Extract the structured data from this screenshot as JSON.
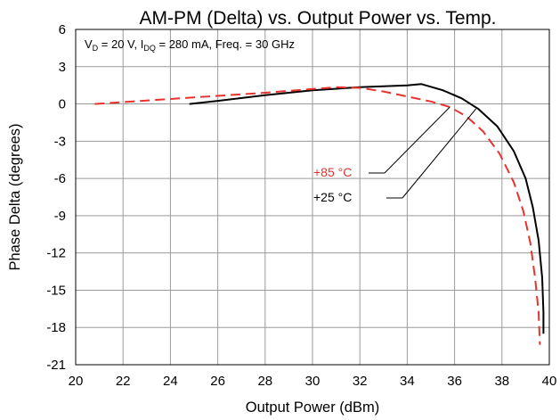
{
  "chart_data": {
    "type": "line",
    "title": "AM-PM (Delta) vs. Output Power vs. Temp.",
    "conditions": {
      "vd_sym": "V",
      "vd_sub": "D",
      "vd_val": " = 20 V, ",
      "idq_sym": "I",
      "idq_sub": "DQ",
      "idq_val": " = 280 mA, Freq. = 30 GHz"
    },
    "xlabel": "Output Power (dBm)",
    "ylabel": "Phase Delta (degrees)",
    "xlim": [
      20,
      40
    ],
    "ylim": [
      -21,
      6
    ],
    "xticks": [
      20,
      22,
      24,
      26,
      28,
      30,
      32,
      34,
      36,
      38,
      40
    ],
    "yticks": [
      6,
      3,
      0,
      -3,
      -6,
      -9,
      -12,
      -15,
      -18,
      -21
    ],
    "grid": true,
    "series": [
      {
        "name": "+25 °C",
        "color": "#000000",
        "dash": "solid",
        "points": [
          [
            24.8,
            0.0
          ],
          [
            26,
            0.25
          ],
          [
            28,
            0.7
          ],
          [
            30,
            1.1
          ],
          [
            32,
            1.35
          ],
          [
            34,
            1.5
          ],
          [
            34.6,
            1.6
          ],
          [
            35.5,
            1.1
          ],
          [
            36.3,
            0.45
          ],
          [
            37,
            -0.4
          ],
          [
            37.8,
            -1.8
          ],
          [
            38.5,
            -3.8
          ],
          [
            39,
            -6.0
          ],
          [
            39.3,
            -8.3
          ],
          [
            39.55,
            -11.0
          ],
          [
            39.7,
            -14.0
          ],
          [
            39.75,
            -16.8
          ],
          [
            39.75,
            -18.5
          ]
        ]
      },
      {
        "name": "+85 °C",
        "color": "#e8322e",
        "dash": "dashed",
        "points": [
          [
            20.8,
            0.0
          ],
          [
            22,
            0.15
          ],
          [
            24,
            0.4
          ],
          [
            26,
            0.65
          ],
          [
            28,
            0.9
          ],
          [
            30,
            1.2
          ],
          [
            31,
            1.35
          ],
          [
            32,
            1.3
          ],
          [
            33,
            1.0
          ],
          [
            34,
            0.6
          ],
          [
            35,
            0.2
          ],
          [
            35.8,
            -0.25
          ],
          [
            36.5,
            -1.0
          ],
          [
            37.2,
            -2.2
          ],
          [
            37.9,
            -4.0
          ],
          [
            38.5,
            -6.3
          ],
          [
            38.9,
            -8.6
          ],
          [
            39.2,
            -11.2
          ],
          [
            39.4,
            -14.0
          ],
          [
            39.55,
            -16.8
          ],
          [
            39.6,
            -19.4
          ]
        ]
      }
    ],
    "annotations": [
      {
        "text": "+85 °C",
        "color": "#e8322e",
        "leader_from": [
          35.8,
          -0.25
        ]
      },
      {
        "text": "+25 °C",
        "color": "#000000",
        "leader_from": [
          36.9,
          -0.4
        ]
      }
    ]
  }
}
